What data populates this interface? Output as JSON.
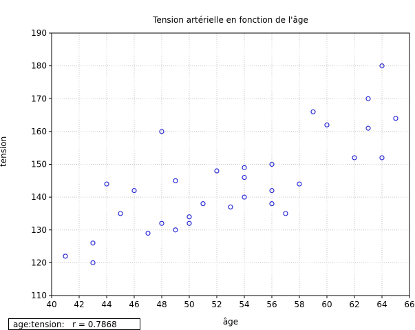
{
  "chart_data": {
    "type": "scatter",
    "title": "Tension artérielle en fonction de l'âge",
    "xlabel": "âge",
    "ylabel": "tension",
    "xlim": [
      40,
      66
    ],
    "ylim": [
      110,
      190
    ],
    "x_ticks": [
      40,
      42,
      44,
      46,
      48,
      50,
      52,
      54,
      56,
      58,
      60,
      62,
      64,
      66
    ],
    "y_ticks": [
      110,
      120,
      130,
      140,
      150,
      160,
      170,
      180,
      190
    ],
    "grid": true,
    "marker_color": "#2b2bd6",
    "points": [
      {
        "x": 41,
        "y": 122
      },
      {
        "x": 43,
        "y": 126
      },
      {
        "x": 43,
        "y": 120
      },
      {
        "x": 44,
        "y": 144
      },
      {
        "x": 45,
        "y": 135
      },
      {
        "x": 46,
        "y": 142
      },
      {
        "x": 47,
        "y": 129
      },
      {
        "x": 48,
        "y": 160
      },
      {
        "x": 48,
        "y": 132
      },
      {
        "x": 49,
        "y": 145
      },
      {
        "x": 49,
        "y": 130
      },
      {
        "x": 50,
        "y": 134
      },
      {
        "x": 50,
        "y": 132
      },
      {
        "x": 51,
        "y": 138
      },
      {
        "x": 52,
        "y": 148
      },
      {
        "x": 53,
        "y": 137
      },
      {
        "x": 54,
        "y": 149
      },
      {
        "x": 54,
        "y": 146
      },
      {
        "x": 54,
        "y": 140
      },
      {
        "x": 56,
        "y": 150
      },
      {
        "x": 56,
        "y": 142
      },
      {
        "x": 56,
        "y": 138
      },
      {
        "x": 57,
        "y": 135
      },
      {
        "x": 58,
        "y": 144
      },
      {
        "x": 59,
        "y": 166
      },
      {
        "x": 60,
        "y": 162
      },
      {
        "x": 62,
        "y": 152
      },
      {
        "x": 63,
        "y": 170
      },
      {
        "x": 63,
        "y": 161
      },
      {
        "x": 64,
        "y": 180
      },
      {
        "x": 64,
        "y": 152
      },
      {
        "x": 65,
        "y": 164
      }
    ]
  },
  "stat_box": {
    "label": "age:tension:",
    "value": "r = 0.7868"
  }
}
